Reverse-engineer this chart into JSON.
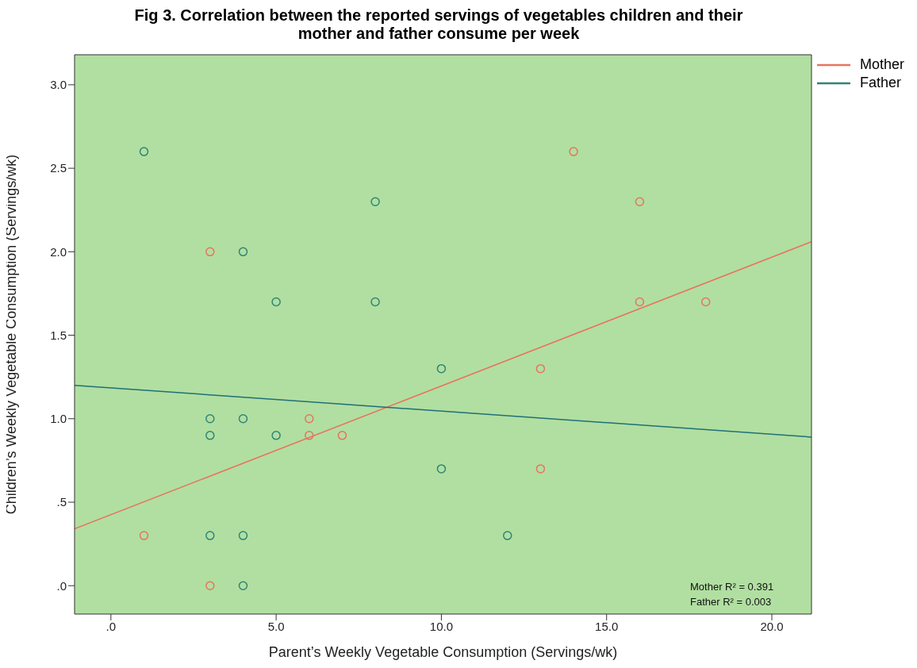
{
  "chart_data": {
    "type": "scatter",
    "title": "Fig 3. Correlation between the reported servings of vegetables children and their mother and father consume per week",
    "xlabel": "Parent’s Weekly Vegetable Consumption (Servings/wk)",
    "ylabel": "Children’s Weekly Vegetable Consumption (Servings/wk)",
    "annotations": [
      "Mother R² = 0.391",
      "Father R² = 0.003"
    ],
    "series": [
      {
        "name": "Mother",
        "color": "#e8735f",
        "x": [
          1,
          3,
          3,
          6,
          6,
          7,
          13,
          13,
          14,
          16,
          16,
          18
        ],
        "values": [
          0.3,
          2.0,
          0,
          1.0,
          0.9,
          0.9,
          1.3,
          0.7,
          2.6,
          2.3,
          1.7,
          1.7
        ]
      },
      {
        "name": "Father",
        "color": "#2e8577",
        "x": [
          1,
          3,
          3,
          3,
          4,
          4,
          4,
          4,
          5,
          5,
          8,
          8,
          10,
          10,
          12
        ],
        "values": [
          2.6,
          1.0,
          0.9,
          0.3,
          2.0,
          1.0,
          0.3,
          0,
          1.7,
          0.9,
          2.3,
          1.7,
          1.3,
          0.7,
          0.3
        ]
      },
      {
        "color": "#e8735f",
        "type": "line",
        "marker": "none",
        "x": [
          -1.1,
          21.2
        ],
        "values": [
          0.34,
          2.06
        ]
      },
      {
        "color": "#1f6f78",
        "type": "line",
        "marker": "none",
        "x": [
          -1.1,
          21.2
        ],
        "values": [
          1.2,
          0.89
        ]
      }
    ],
    "xlim": [
      -1.1,
      21.2
    ],
    "xticks": [
      {
        "value": 0,
        "label": ".0"
      },
      {
        "value": 5,
        "label": "5.0"
      },
      {
        "value": 10,
        "label": "10.0"
      },
      {
        "value": 15,
        "label": "15.0"
      },
      {
        "value": 20,
        "label": "20.0"
      }
    ],
    "ylim": [
      -0.17,
      3.18
    ],
    "yticks": [
      {
        "value": 0,
        "label": ".0"
      },
      {
        "value": 0.5,
        "label": ".5"
      },
      {
        "value": 1,
        "label": "1.0"
      },
      {
        "value": 1.5,
        "label": "1.5"
      },
      {
        "value": 2,
        "label": "2.0"
      },
      {
        "value": 2.5,
        "label": "2.5"
      },
      {
        "value": 3,
        "label": "3.0"
      }
    ],
    "grid": false,
    "legend": "top right",
    "marker": "circle",
    "line_style": "solid"
  }
}
